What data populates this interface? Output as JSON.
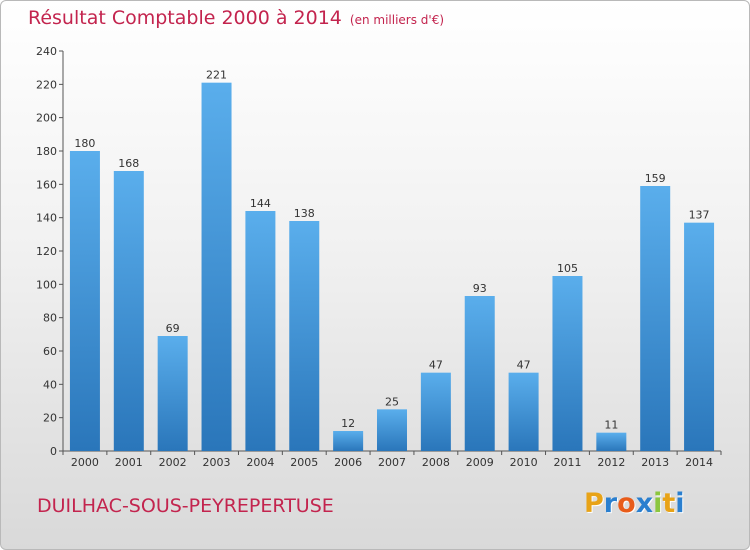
{
  "header": {
    "title": "Résultat Comptable 2000 à 2014",
    "unit": "(en milliers d'€)"
  },
  "footer": {
    "place_name": "DUILHAC-SOUS-PEYREPERTUSE",
    "logo_text": "Proxiti"
  },
  "colors": {
    "title": "#c3244e",
    "bar_light": "#5aaeec",
    "bar_dark": "#2a76ba",
    "logo_letters": [
      "#e8a317",
      "#2a7fcf",
      "#e85c1a",
      "#2a7fcf",
      "#8cc63f",
      "#e8a317",
      "#2a7fcf"
    ]
  },
  "chart_data": {
    "type": "bar",
    "title": "Résultat Comptable 2000 à 2014",
    "unit": "(en milliers d'€)",
    "categories": [
      "2000",
      "2001",
      "2002",
      "2003",
      "2004",
      "2005",
      "2006",
      "2007",
      "2008",
      "2009",
      "2010",
      "2011",
      "2012",
      "2013",
      "2014"
    ],
    "values": [
      180,
      168,
      69,
      221,
      144,
      138,
      12,
      25,
      47,
      93,
      47,
      105,
      11,
      159,
      137
    ],
    "ylim": [
      0,
      240
    ],
    "yticks": [
      0,
      20,
      40,
      60,
      80,
      100,
      120,
      140,
      160,
      180,
      200,
      220,
      240
    ],
    "grid": false,
    "data_labels": true
  }
}
